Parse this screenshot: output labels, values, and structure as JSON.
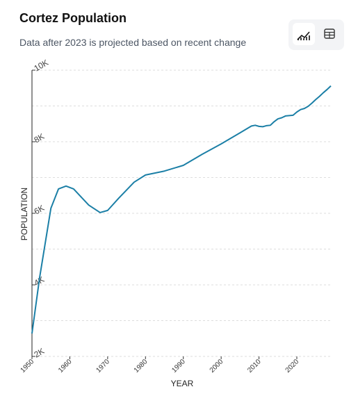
{
  "chart_data": {
    "type": "line",
    "title": "Cortez Population",
    "subtitle": "Data after 2023 is projected based on recent change",
    "x_label": "YEAR",
    "y_label": "POPULATION",
    "x": [
      1950,
      1952,
      1955,
      1957,
      1959,
      1961,
      1965,
      1968,
      1970,
      1973,
      1977,
      1980,
      1985,
      1990,
      1995,
      2000,
      2005,
      2008,
      2009,
      2010,
      2011,
      2012,
      2013,
      2014,
      2015,
      2016,
      2017,
      2018,
      2019,
      2020,
      2021,
      2022,
      2023,
      2024,
      2025,
      2026,
      2027,
      2028,
      2029
    ],
    "series": [
      {
        "name": "Population",
        "color": "#1b7fa6",
        "values": [
          2640,
          4190,
          6140,
          6680,
          6760,
          6680,
          6230,
          6020,
          6080,
          6430,
          6870,
          7070,
          7180,
          7340,
          7650,
          7940,
          8250,
          8440,
          8460,
          8430,
          8420,
          8450,
          8460,
          8560,
          8640,
          8670,
          8720,
          8730,
          8740,
          8830,
          8900,
          8930,
          8990,
          9080,
          9180,
          9270,
          9370,
          9460,
          9560
        ]
      }
    ],
    "xlim": [
      1950,
      2029
    ],
    "xticks": [
      1950,
      1960,
      1970,
      1980,
      1990,
      2000,
      2010,
      2020
    ],
    "ylim": [
      2000,
      10000
    ],
    "yticks": [
      {
        "value": 2000,
        "label": "2K"
      },
      {
        "value": 4000,
        "label": "4K"
      },
      {
        "value": 6000,
        "label": "6K"
      },
      {
        "value": 8000,
        "label": "8K"
      },
      {
        "value": 10000,
        "label": "10K"
      }
    ],
    "minor_grid": [
      3000,
      5000,
      7000,
      9000
    ],
    "grid": true
  }
}
